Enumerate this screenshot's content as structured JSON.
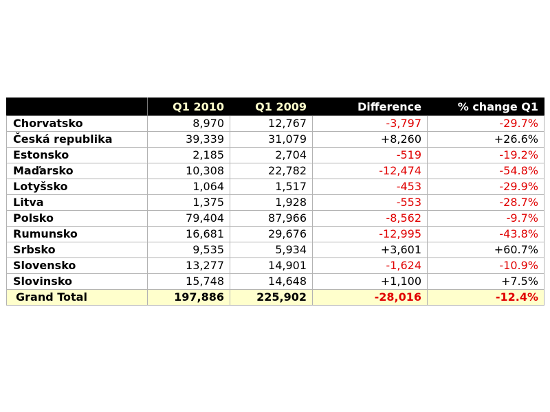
{
  "table": {
    "headers": [
      "",
      "Q1 2010",
      "Q1 2009",
      "Difference",
      "% change Q1"
    ],
    "rows": [
      {
        "name": "Chorvatsko",
        "q1_2010": "8,970",
        "q1_2009": "12,767",
        "difference": "-3,797",
        "pct_change": "-29.7%"
      },
      {
        "name": "Česká republika",
        "q1_2010": "39,339",
        "q1_2009": "31,079",
        "difference": "+8,260",
        "pct_change": "+26.6%"
      },
      {
        "name": "Estonsko",
        "q1_2010": "2,185",
        "q1_2009": "2,704",
        "difference": "-519",
        "pct_change": "-19.2%"
      },
      {
        "name": "Maďarsko",
        "q1_2010": "10,308",
        "q1_2009": "22,782",
        "difference": "-12,474",
        "pct_change": "-54.8%"
      },
      {
        "name": "Lotyšsko",
        "q1_2010": "1,064",
        "q1_2009": "1,517",
        "difference": "-453",
        "pct_change": "-29.9%"
      },
      {
        "name": "Litva",
        "q1_2010": "1,375",
        "q1_2009": "1,928",
        "difference": "-553",
        "pct_change": "-28.7%"
      },
      {
        "name": "Polsko",
        "q1_2010": "79,404",
        "q1_2009": "87,966",
        "difference": "-8,562",
        "pct_change": "-9.7%"
      },
      {
        "name": "Rumunsko",
        "q1_2010": "16,681",
        "q1_2009": "29,676",
        "difference": "-12,995",
        "pct_change": "-43.8%"
      },
      {
        "name": "Srbsko",
        "q1_2010": "9,535",
        "q1_2009": "5,934",
        "difference": "+3,601",
        "pct_change": "+60.7%"
      },
      {
        "name": "Slovensko",
        "q1_2010": "13,277",
        "q1_2009": "14,901",
        "difference": "-1,624",
        "pct_change": "-10.9%"
      },
      {
        "name": "Slovinsko",
        "q1_2010": "15,748",
        "q1_2009": "14,648",
        "difference": "+1,100",
        "pct_change": "+7.5%"
      }
    ],
    "total": {
      "name": "Grand Total",
      "q1_2010": "197,886",
      "q1_2009": "225,902",
      "difference": "-28,016",
      "pct_change": "-12.4%"
    }
  },
  "colors": {
    "header_background": "#000000",
    "header_text": "#ffffcc",
    "negative_text": "#e00000",
    "total_row_background": "#ffffcc",
    "grid_lines": "#b3b3b3"
  }
}
